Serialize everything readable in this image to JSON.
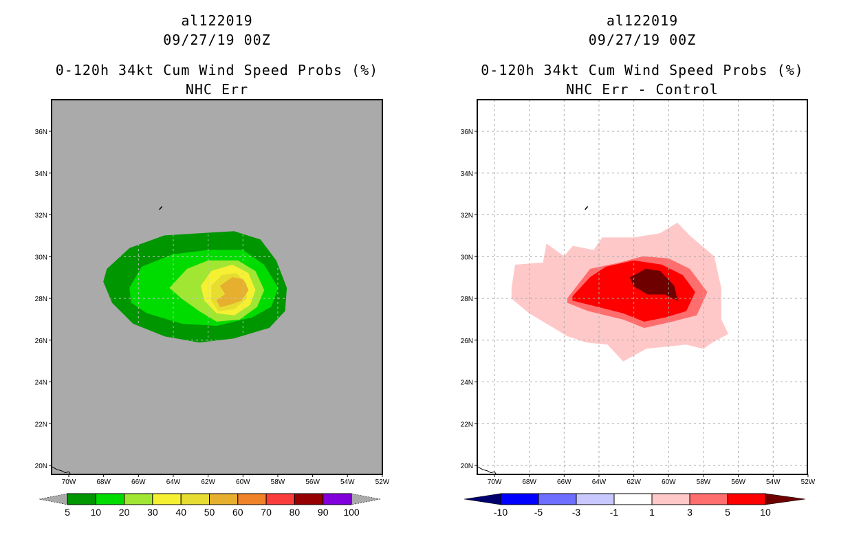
{
  "chart_data": [
    {
      "type": "heatmap",
      "subtype": "filled-contour-map",
      "title_lines": [
        "al122019",
        "09/27/19 00Z",
        "0-120h 34kt Cum Wind Speed Probs (%)",
        "NHC Err"
      ],
      "background_color": "#aaaaaa",
      "grid": true,
      "lon_range": [
        -71,
        -52
      ],
      "lat_range": [
        19.5,
        37.5
      ],
      "x_ticks": [
        "70W",
        "68W",
        "66W",
        "64W",
        "62W",
        "60W",
        "58W",
        "56W",
        "54W",
        "52W"
      ],
      "y_ticks": [
        "20N",
        "22N",
        "24N",
        "26N",
        "28N",
        "30N",
        "32N",
        "34N",
        "36N"
      ],
      "colorbar": {
        "levels": [
          "5",
          "10",
          "20",
          "30",
          "40",
          "50",
          "60",
          "70",
          "80",
          "90",
          "100"
        ],
        "colors": [
          "#009600",
          "#00dc00",
          "#a0e632",
          "#f5f032",
          "#e6dc32",
          "#e6af2d",
          "#f08228",
          "#fa3c3c",
          "#960000",
          "#8200dc"
        ],
        "under_color": "#aaaaaa",
        "over_color": "#aaaaaa"
      },
      "contours": [
        {
          "level": 5,
          "color": "#009600",
          "lonlat": [
            [
              -67.8,
              29.4
            ],
            [
              -66.5,
              30.4
            ],
            [
              -64.5,
              31.0
            ],
            [
              -62.5,
              31.1
            ],
            [
              -60.5,
              31.2
            ],
            [
              -59.0,
              30.8
            ],
            [
              -58.1,
              29.8
            ],
            [
              -57.5,
              28.5
            ],
            [
              -57.6,
              27.4
            ],
            [
              -58.5,
              26.6
            ],
            [
              -60.5,
              26.1
            ],
            [
              -62.5,
              25.9
            ],
            [
              -64.5,
              26.2
            ],
            [
              -66.3,
              26.8
            ],
            [
              -67.5,
              27.8
            ],
            [
              -68.0,
              28.8
            ]
          ]
        },
        {
          "level": 10,
          "color": "#00dc00",
          "lonlat": [
            [
              -66.5,
              28.5
            ],
            [
              -65.8,
              29.5
            ],
            [
              -64.0,
              30.1
            ],
            [
              -62.0,
              30.3
            ],
            [
              -60.0,
              30.3
            ],
            [
              -58.8,
              29.6
            ],
            [
              -58.0,
              28.5
            ],
            [
              -58.4,
              27.6
            ],
            [
              -59.5,
              27.1
            ],
            [
              -61.5,
              26.7
            ],
            [
              -63.5,
              26.8
            ],
            [
              -65.5,
              27.3
            ],
            [
              -66.4,
              27.8
            ]
          ]
        },
        {
          "level": 20,
          "color": "#a0e632",
          "lonlat": [
            [
              -64.2,
              28.5
            ],
            [
              -63.2,
              29.4
            ],
            [
              -62.0,
              29.8
            ],
            [
              -60.3,
              29.8
            ],
            [
              -59.3,
              29.3
            ],
            [
              -58.8,
              28.4
            ],
            [
              -59.2,
              27.6
            ],
            [
              -60.2,
              27.0
            ],
            [
              -61.5,
              26.9
            ],
            [
              -62.5,
              27.4
            ],
            [
              -63.5,
              28.0
            ]
          ]
        },
        {
          "level": 30,
          "color": "#f5f032",
          "lonlat": [
            [
              -62.4,
              28.6
            ],
            [
              -61.8,
              29.3
            ],
            [
              -60.6,
              29.6
            ],
            [
              -59.7,
              29.2
            ],
            [
              -59.3,
              28.4
            ],
            [
              -59.6,
              27.7
            ],
            [
              -60.5,
              27.2
            ],
            [
              -61.5,
              27.3
            ],
            [
              -62.2,
              27.9
            ]
          ]
        },
        {
          "level": 40,
          "color": "#e6dc32",
          "lonlat": [
            [
              -61.8,
              28.6
            ],
            [
              -61.2,
              29.1
            ],
            [
              -60.4,
              29.2
            ],
            [
              -59.8,
              28.7
            ],
            [
              -59.8,
              28.0
            ],
            [
              -60.5,
              27.5
            ],
            [
              -61.4,
              27.4
            ],
            [
              -61.8,
              27.9
            ]
          ]
        },
        {
          "level": 50,
          "color": "#e6af2d",
          "lonlat": [
            [
              -61.3,
              28.6
            ],
            [
              -60.6,
              29.0
            ],
            [
              -60.0,
              28.9
            ],
            [
              -59.7,
              28.4
            ],
            [
              -60.1,
              27.9
            ],
            [
              -60.8,
              27.7
            ],
            [
              -61.3,
              27.6
            ],
            [
              -61.5,
              27.9
            ],
            [
              -61.0,
              28.2
            ]
          ]
        }
      ]
    },
    {
      "type": "heatmap",
      "subtype": "filled-contour-map",
      "title_lines": [
        "al122019",
        "09/27/19 00Z",
        "0-120h 34kt Cum Wind Speed Probs (%)",
        "NHC Err - Control"
      ],
      "background_color": "#ffffff",
      "grid": true,
      "lon_range": [
        -71,
        -52
      ],
      "lat_range": [
        19.5,
        37.5
      ],
      "x_ticks": [
        "70W",
        "68W",
        "66W",
        "64W",
        "62W",
        "60W",
        "58W",
        "56W",
        "54W",
        "52W"
      ],
      "y_ticks": [
        "20N",
        "22N",
        "24N",
        "26N",
        "28N",
        "30N",
        "32N",
        "34N",
        "36N"
      ],
      "colorbar": {
        "levels": [
          "-10",
          "-5",
          "-3",
          "-1",
          "1",
          "3",
          "5",
          "10"
        ],
        "colors": [
          "#0000ff",
          "#6e6eff",
          "#c8c8ff",
          "#ffffff",
          "#ffc8c8",
          "#ff6e6e",
          "#ff0000"
        ],
        "under_color": "#00006e",
        "over_color": "#6e0000"
      },
      "contours": [
        {
          "level": 1,
          "color": "#ffc8c8",
          "lonlat": [
            [
              -69.0,
              28.5
            ],
            [
              -68.8,
              29.6
            ],
            [
              -67.2,
              29.7
            ],
            [
              -67.0,
              30.6
            ],
            [
              -66.0,
              30.0
            ],
            [
              -65.5,
              30.5
            ],
            [
              -64.3,
              30.3
            ],
            [
              -63.8,
              30.9
            ],
            [
              -62.0,
              30.9
            ],
            [
              -60.5,
              31.1
            ],
            [
              -59.5,
              31.6
            ],
            [
              -58.8,
              31.0
            ],
            [
              -57.4,
              30.0
            ],
            [
              -57.0,
              28.5
            ],
            [
              -57.0,
              27.0
            ],
            [
              -56.6,
              26.3
            ],
            [
              -57.5,
              25.9
            ],
            [
              -58.0,
              25.6
            ],
            [
              -59.0,
              25.8
            ],
            [
              -61.3,
              25.6
            ],
            [
              -62.6,
              25.0
            ],
            [
              -63.5,
              25.8
            ],
            [
              -64.7,
              25.9
            ],
            [
              -65.8,
              26.2
            ],
            [
              -66.8,
              26.7
            ],
            [
              -68.0,
              27.3
            ],
            [
              -69.0,
              28.0
            ]
          ]
        },
        {
          "level": 3,
          "color": "#ff6e6e",
          "lonlat": [
            [
              -65.8,
              28.0
            ],
            [
              -64.5,
              29.4
            ],
            [
              -62.8,
              29.7
            ],
            [
              -61.5,
              30.0
            ],
            [
              -60.0,
              29.9
            ],
            [
              -58.8,
              29.4
            ],
            [
              -57.8,
              28.3
            ],
            [
              -58.4,
              27.2
            ],
            [
              -59.8,
              26.9
            ],
            [
              -61.4,
              26.6
            ],
            [
              -62.6,
              27.0
            ],
            [
              -64.6,
              27.4
            ],
            [
              -65.8,
              27.8
            ]
          ]
        },
        {
          "level": 5,
          "color": "#ff0000",
          "lonlat": [
            [
              -65.5,
              28.1
            ],
            [
              -64.5,
              29.0
            ],
            [
              -63.6,
              29.5
            ],
            [
              -62.0,
              29.8
            ],
            [
              -60.4,
              29.6
            ],
            [
              -59.2,
              29.1
            ],
            [
              -58.5,
              28.3
            ],
            [
              -59.0,
              27.4
            ],
            [
              -60.2,
              27.1
            ],
            [
              -61.4,
              26.9
            ],
            [
              -62.6,
              27.3
            ],
            [
              -64.5,
              27.7
            ],
            [
              -65.5,
              27.9
            ]
          ]
        },
        {
          "level": 10,
          "color": "#6e0000",
          "lonlat": [
            [
              -62.2,
              29.0
            ],
            [
              -61.3,
              29.4
            ],
            [
              -60.5,
              29.3
            ],
            [
              -59.7,
              28.6
            ],
            [
              -59.5,
              27.9
            ],
            [
              -60.2,
              28.2
            ],
            [
              -61.2,
              28.2
            ],
            [
              -62.0,
              28.6
            ]
          ]
        }
      ]
    }
  ]
}
